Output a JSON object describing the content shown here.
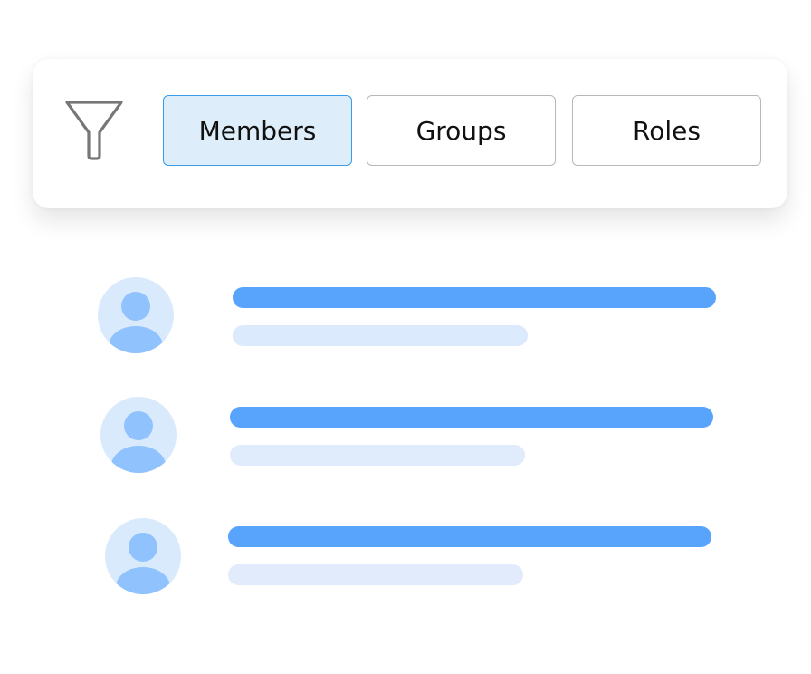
{
  "filter": {
    "icon": "funnel-icon",
    "buttons": [
      {
        "label": "Members",
        "selected": true
      },
      {
        "label": "Groups",
        "selected": false
      },
      {
        "label": "Roles",
        "selected": false
      }
    ]
  },
  "colors": {
    "accent": "#3a9be8",
    "selected_bg": "#ddeefa",
    "bar_primary": "#58a3fb",
    "bar_secondary": "#dbeafd",
    "avatar_bg": "#d9eafd",
    "avatar_fg": "#90c2fd"
  },
  "members": [
    {
      "avatar_icon": "user-icon"
    },
    {
      "avatar_icon": "user-icon"
    },
    {
      "avatar_icon": "user-icon"
    }
  ]
}
